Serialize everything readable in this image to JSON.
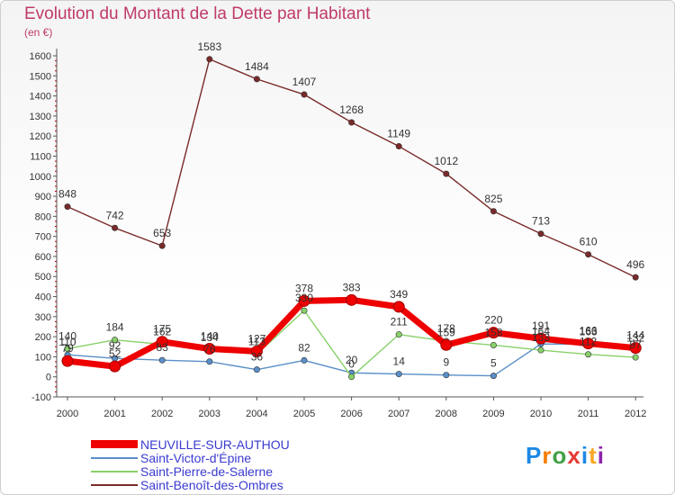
{
  "title": "Evolution du Montant de la Dette par Habitant",
  "unit": "(en €)",
  "logo": "Proxiti",
  "chart_data": {
    "type": "line",
    "title": "Evolution du Montant de la Dette par Habitant",
    "ylabel": "(en €)",
    "x": [
      "2000",
      "2001",
      "2002",
      "2003",
      "2004",
      "2005",
      "2006",
      "2007",
      "2008",
      "2009",
      "2010",
      "2011",
      "2012"
    ],
    "ylim": [
      -100,
      1600
    ],
    "yticks": [
      -100,
      0,
      100,
      200,
      300,
      400,
      500,
      600,
      700,
      800,
      900,
      1000,
      1100,
      1200,
      1300,
      1400,
      1500,
      1600
    ],
    "grid": false,
    "legend": "bottom-left",
    "series": [
      {
        "name": "NEUVILLE-SUR-AUTHOU",
        "color": "#ee0000",
        "values": [
          79,
          52,
          175,
          140,
          127,
          378,
          383,
          349,
          159,
          220,
          191,
          166,
          144
        ]
      },
      {
        "name": "Saint-Victor-d'Épine",
        "color": "#5a8fc8",
        "values": [
          110,
          92,
          83,
          76,
          36,
          82,
          20,
          14,
          9,
          5,
          164,
          163,
          132
        ]
      },
      {
        "name": "Saint-Pierre-de-Salerne",
        "color": "#88d16a",
        "values": [
          140,
          184,
          162,
          134,
          113,
          330,
          0,
          211,
          178,
          158,
          133,
          112,
          97
        ]
      },
      {
        "name": "Saint-Benoît-des-Ombres",
        "color": "#7a2a2a",
        "values": [
          848,
          742,
          653,
          1583,
          1484,
          1407,
          1268,
          1149,
          1012,
          825,
          713,
          610,
          496
        ]
      }
    ]
  }
}
